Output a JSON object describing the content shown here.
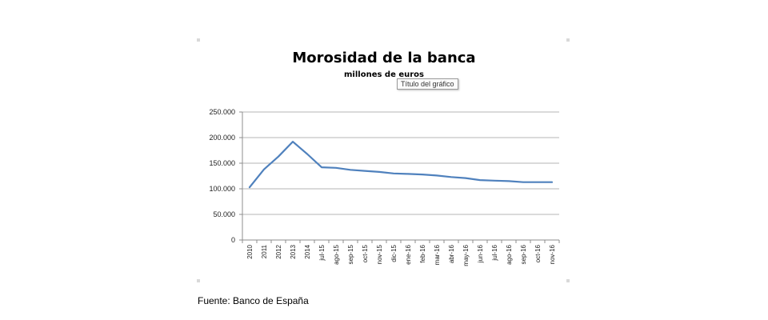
{
  "chart_data": {
    "type": "line",
    "title": "Morosidad de la banca",
    "subtitle": "millones de euros",
    "categories": [
      "2010",
      "2011",
      "2012",
      "2013",
      "2014",
      "jul-15",
      "ago-15",
      "sep-15",
      "oct-15",
      "nov-15",
      "dic-15",
      "ene-16",
      "feb-16",
      "mar-16",
      "abr-16",
      "may-16",
      "jun-16",
      "jul-16",
      "ago-16",
      "sep-16",
      "oct-16",
      "nov-16"
    ],
    "series": [
      {
        "values": [
          103000,
          138000,
          163000,
          192000,
          168000,
          142000,
          141000,
          137000,
          135000,
          133000,
          130000,
          129000,
          128000,
          126000,
          123000,
          121000,
          117000,
          116000,
          115000,
          113000,
          113000,
          113000
        ]
      }
    ],
    "ylim": [
      0,
      250000
    ],
    "yticks": [
      0,
      50000,
      100000,
      150000,
      200000,
      250000
    ],
    "ytick_labels": [
      "0",
      "50.000",
      "100.000",
      "150.000",
      "200.000",
      "250.000"
    ],
    "grid": true,
    "line_color": "#4f81bd"
  },
  "tooltip": "Título del gráfico",
  "source": "Fuente: Banco de España"
}
